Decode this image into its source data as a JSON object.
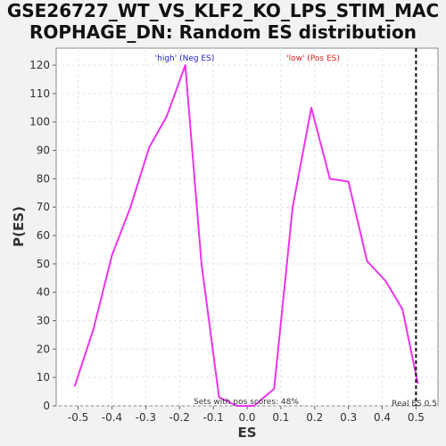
{
  "chart_data": {
    "type": "line",
    "title_line1": "GSE26727_WT_VS_KLF2_KO_LPS_STIM_MAC",
    "title_line2": "ROPHAGE_DN: Random ES distribution",
    "xlabel": "ES",
    "ylabel": "P(ES)",
    "xlim": [
      -0.565,
      0.565
    ],
    "ylim": [
      0,
      126
    ],
    "xticks": [
      -0.5,
      -0.4,
      -0.3,
      -0.2,
      -0.1,
      0.0,
      0.1,
      0.2,
      0.3,
      0.4,
      0.5
    ],
    "xtick_labels": [
      "-0.5",
      "-0.4",
      "-0.3",
      "-0.2",
      "-0.1",
      "0.0",
      "0.1",
      "0.2",
      "0.3",
      "0.4",
      "0.5"
    ],
    "yticks": [
      0,
      10,
      20,
      30,
      40,
      50,
      60,
      70,
      80,
      90,
      100,
      110,
      120
    ],
    "ytick_labels": [
      "0",
      "10",
      "20",
      "30",
      "40",
      "50",
      "60",
      "70",
      "80",
      "90",
      "100",
      "110",
      "120"
    ],
    "grid": true,
    "series": [
      {
        "color": "#ee33ee",
        "x": [
          -0.51,
          -0.455,
          -0.4,
          -0.345,
          -0.29,
          -0.238,
          -0.183,
          -0.135,
          -0.083,
          -0.03,
          0.02,
          0.08,
          0.135,
          0.19,
          0.245,
          0.3,
          0.355,
          0.41,
          0.46,
          0.505
        ],
        "y": [
          7,
          27,
          53,
          70,
          91,
          102,
          120,
          50,
          3,
          0,
          0,
          6,
          70,
          105,
          80,
          79,
          51,
          44,
          34,
          8
        ]
      }
    ],
    "real_es": 0.5,
    "real_es_label": "Real ES 0.5",
    "annotations": {
      "high_label": "'high' (Neg ES)",
      "high_color": "#2222cc",
      "low_label": "'low' (Pos ES)",
      "low_color": "#dd2222",
      "pos_scores_text": "Sets with pos scores: 48%"
    }
  }
}
